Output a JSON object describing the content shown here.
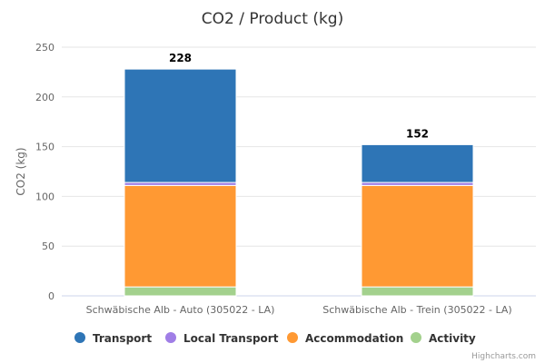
{
  "chart_data": {
    "type": "bar",
    "stacked": true,
    "title": "CO2 / Product (kg)",
    "xlabel": "",
    "ylabel": "CO2 (kg)",
    "ylim": [
      0,
      250
    ],
    "yticks": [
      0,
      50,
      100,
      150,
      200,
      250
    ],
    "grid": true,
    "legend_position": "bottom",
    "categories": [
      "Schwäbische Alb - Auto (305022 - LA)",
      "Schwäbische Alb - Trein (305022 - LA)"
    ],
    "totals": [
      228,
      152
    ],
    "series": [
      {
        "name": "Activity",
        "color": "#a3d18d",
        "values": [
          9,
          9
        ]
      },
      {
        "name": "Accommodation",
        "color": "#ff9933",
        "values": [
          102,
          102
        ]
      },
      {
        "name": "Local Transport",
        "color": "#a07ee6",
        "values": [
          3,
          3
        ]
      },
      {
        "name": "Transport",
        "color": "#2e75b6",
        "values": [
          114,
          38
        ]
      }
    ],
    "legend_order": [
      "Transport",
      "Local Transport",
      "Accommodation",
      "Activity"
    ],
    "credits": "Highcharts.com"
  }
}
